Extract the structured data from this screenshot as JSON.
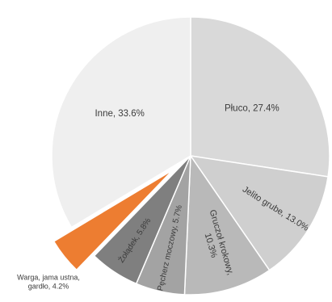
{
  "chart_data": {
    "type": "pie",
    "title": "",
    "slices": [
      {
        "label": "Płuco, 27.4%",
        "category": "Płuco",
        "value": 27.4,
        "color": "#d9d9d9"
      },
      {
        "label": "Jelito grube, 13.0%",
        "category": "Jelito grube",
        "value": 13.0,
        "color": "#cfcfcf"
      },
      {
        "label_lines": [
          "Gruczoł krokowy,",
          "10.3%"
        ],
        "category": "Gruczoł krokowy",
        "value": 10.3,
        "color": "#b9b9b9"
      },
      {
        "label": "Pęcherz moczowy, 5.7%",
        "category": "Pęcherz moczowy",
        "value": 5.7,
        "color": "#a3a3a3"
      },
      {
        "label": "Żołądek, 5.8%",
        "category": "Żołądek",
        "value": 5.8,
        "color": "#7f7f7f"
      },
      {
        "label_lines": [
          "Warga, jama ustna,",
          "gardło, 4.2%"
        ],
        "category": "Warga, jama ustna, gardło",
        "value": 4.2,
        "color": "#ed7d31",
        "exploded": true
      },
      {
        "label": "Inne, 33.6%",
        "category": "Inne",
        "value": 33.6,
        "color": "#efefef"
      }
    ]
  }
}
